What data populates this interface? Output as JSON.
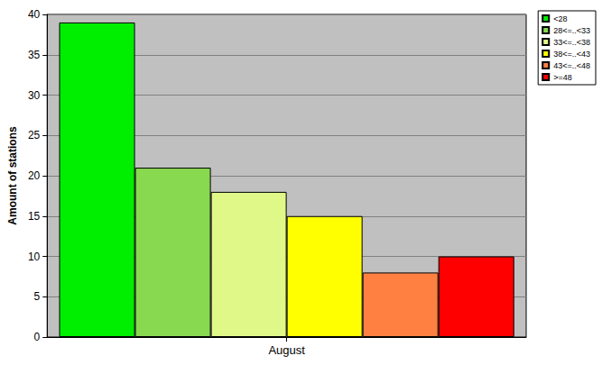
{
  "chart_data": {
    "type": "bar",
    "categories": [
      "August"
    ],
    "series": [
      {
        "name": "<28",
        "color": "#00ee00",
        "values": [
          39
        ]
      },
      {
        "name": "28<=..<33",
        "color": "#88d850",
        "values": [
          21
        ]
      },
      {
        "name": "33<=..<38",
        "color": "#e0f888",
        "values": [
          18
        ]
      },
      {
        "name": "38<=..<43",
        "color": "#ffff00",
        "values": [
          15
        ]
      },
      {
        "name": "43<=..<48",
        "color": "#ff8040",
        "values": [
          8
        ]
      },
      {
        "name": ">=48",
        "color": "#ff0000",
        "values": [
          10
        ]
      }
    ],
    "ylabel": "Amount of stations",
    "ylim": [
      0,
      40
    ],
    "yticks": [
      0,
      5,
      10,
      15,
      20,
      25,
      30,
      35,
      40
    ],
    "grid": true,
    "legend": "top-right"
  }
}
